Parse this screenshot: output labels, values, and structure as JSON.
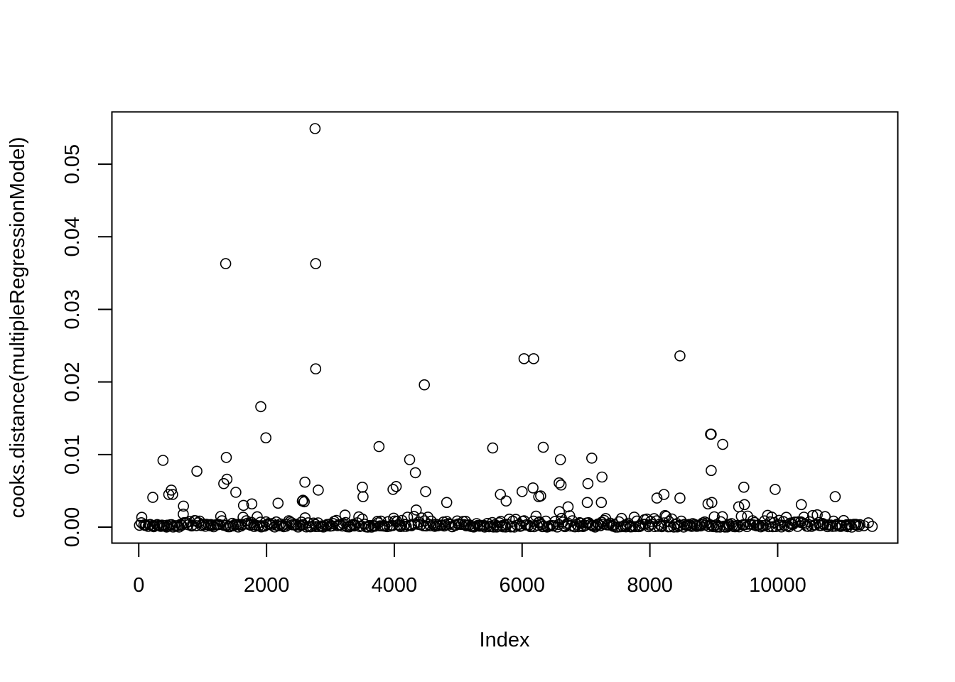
{
  "chart_data": {
    "type": "scatter",
    "title": "",
    "xlabel": "Index",
    "ylabel": "cooks.distance(multipleRegressionModel)",
    "xlim": [
      -420,
      11880
    ],
    "ylim": [
      -0.0022,
      0.0572
    ],
    "x_ticks": [
      0,
      2000,
      4000,
      6000,
      8000,
      10000
    ],
    "y_ticks": [
      0.0,
      0.01,
      0.02,
      0.03,
      0.04,
      0.05
    ],
    "x_tick_labels": [
      "0",
      "2000",
      "4000",
      "6000",
      "8000",
      "10000"
    ],
    "y_tick_labels": [
      "0.00",
      "0.01",
      "0.02",
      "0.03",
      "0.04",
      "0.05"
    ],
    "grid": false,
    "legend": "none",
    "marker": "open-circle",
    "point_color": "#000000",
    "n_points_approx": 11480,
    "series": [
      {
        "x": [
          2760,
          1360,
          2770,
          2770,
          4470,
          6030,
          6180,
          8470,
          1910,
          1990,
          3760,
          5540,
          6330,
          8950,
          8960,
          9140,
          380,
          1370,
          4240,
          6600,
          7090,
          910,
          1380,
          4330,
          7250,
          8960,
          2600,
          1330,
          7030,
          6580,
          6610,
          4030,
          3980,
          3500,
          9470,
          9960,
          510,
          2810,
          6170,
          4490,
          530,
          1520,
          5660,
          8220,
          470,
          8110,
          6000,
          6290,
          6260,
          10900,
          4820,
          8470,
          220,
          2560,
          1770,
          1640,
          2180,
          7020,
          700,
          9390,
          9480,
          10370,
          5750,
          8910,
          8970,
          2590,
          2570,
          3510,
          7240,
          6720
        ],
        "y": [
          0.0549,
          0.0363,
          0.0363,
          0.0218,
          0.0196,
          0.0232,
          0.0232,
          0.0236,
          0.0166,
          0.0123,
          0.0111,
          0.0109,
          0.011,
          0.0128,
          0.0128,
          0.0114,
          0.0092,
          0.0096,
          0.0093,
          0.0093,
          0.0095,
          0.0077,
          0.0066,
          0.0075,
          0.0069,
          0.0078,
          0.0062,
          0.006,
          0.006,
          0.0061,
          0.0058,
          0.0056,
          0.0052,
          0.0055,
          0.0055,
          0.0052,
          0.0051,
          0.0051,
          0.0054,
          0.0049,
          0.0045,
          0.0048,
          0.0045,
          0.0045,
          0.0045,
          0.004,
          0.0049,
          0.0043,
          0.0042,
          0.0042,
          0.0034,
          0.004,
          0.0041,
          0.0036,
          0.0032,
          0.003,
          0.0033,
          0.0034,
          0.0029,
          0.0028,
          0.0031,
          0.0031,
          0.0036,
          0.0032,
          0.0034,
          0.0035,
          0.0037,
          0.0042,
          0.0034,
          0.0028
        ]
      }
    ]
  }
}
